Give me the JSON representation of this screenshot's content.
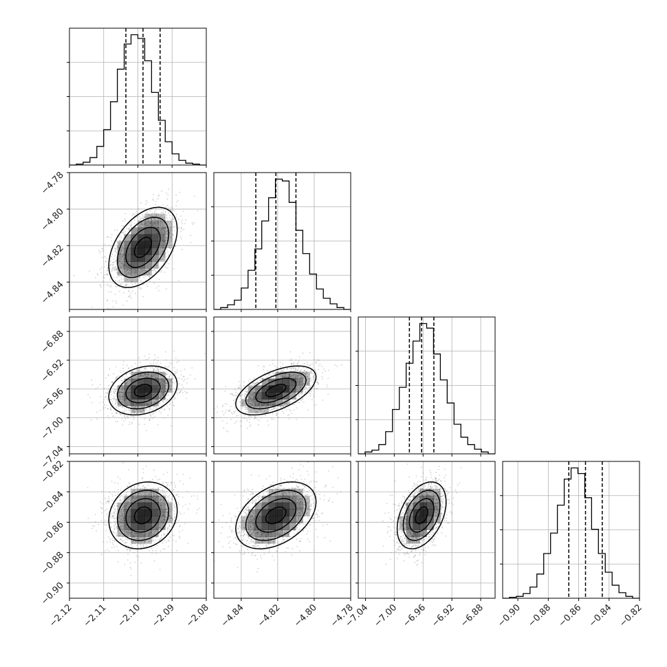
{
  "chart_data": {
    "type": "corner",
    "parameters": [
      {
        "median": -2.0985,
        "q16": -2.1035,
        "q84": -2.0935,
        "sigma": 0.005,
        "hist_counts": [
          0,
          1,
          3,
          8,
          20,
          38,
          68,
          103,
          130,
          140,
          136,
          112,
          78,
          48,
          25,
          12,
          5,
          2,
          1,
          0
        ],
        "axis_range": [
          -2.12,
          -2.08
        ],
        "ticks": [
          -2.12,
          -2.11,
          -2.1,
          -2.09,
          -2.08
        ],
        "tick_labels": [
          "−2.12",
          "−2.11",
          "−2.10",
          "−2.09",
          "−2.08"
        ]
      },
      {
        "median": -4.821,
        "q16": -4.832,
        "q84": -4.81,
        "sigma": 0.011,
        "hist_counts": [
          0,
          2,
          5,
          10,
          23,
          42,
          65,
          95,
          120,
          140,
          138,
          115,
          85,
          60,
          38,
          22,
          12,
          6,
          2,
          0
        ],
        "axis_range": [
          -4.855,
          -4.78
        ],
        "ticks": [
          -4.84,
          -4.82,
          -4.8,
          -4.78
        ],
        "tick_labels": [
          "−4.84",
          "−4.82",
          "−4.80",
          "−4.78"
        ],
        "y_ticks": [
          -4.84,
          -4.82,
          -4.8,
          -4.78
        ],
        "y_tick_labels": [
          "−4.84",
          "−4.82",
          "−4.80",
          "−4.78"
        ]
      },
      {
        "median": -6.962,
        "q16": -6.979,
        "q84": -6.945,
        "sigma": 0.017,
        "hist_counts": [
          0,
          2,
          4,
          10,
          24,
          48,
          72,
          98,
          122,
          141,
          136,
          108,
          80,
          55,
          32,
          18,
          10,
          5,
          2,
          0
        ],
        "axis_range": [
          -7.05,
          -6.86
        ],
        "ticks": [
          -7.04,
          -7.0,
          -6.96,
          -6.92,
          -6.88
        ],
        "tick_labels": [
          "−7.04",
          "−7.00",
          "−6.96",
          "−6.92",
          "−6.88"
        ],
        "y_ticks": [
          -7.04,
          -7.0,
          -6.96,
          -6.92,
          -6.88
        ],
        "y_tick_labels": [
          "−7.04",
          "−7.00",
          "−6.96",
          "−6.92",
          "−6.88"
        ]
      },
      {
        "median": -0.8555,
        "q16": -0.8665,
        "q84": -0.8445,
        "sigma": 0.011,
        "hist_counts": [
          0,
          1,
          2,
          5,
          12,
          26,
          48,
          70,
          100,
          128,
          140,
          134,
          108,
          74,
          48,
          28,
          14,
          6,
          2,
          0
        ],
        "axis_range": [
          -0.91,
          -0.82
        ],
        "ticks": [
          -0.9,
          -0.88,
          -0.86,
          -0.84,
          -0.82
        ],
        "tick_labels": [
          "−0.90",
          "−0.88",
          "−0.86",
          "−0.84",
          "−0.82"
        ],
        "y_ticks": [
          -0.9,
          -0.88,
          -0.86,
          -0.84,
          -0.82
        ],
        "y_tick_labels": [
          "−0.90",
          "−0.88",
          "−0.86",
          "−0.84",
          "−0.82"
        ]
      }
    ],
    "correlations": {
      "1-0": 0.45,
      "2-0": 0.25,
      "2-1": 0.55,
      "3-0": 0.15,
      "3-1": 0.4,
      "3-2": 0.4
    },
    "quantiles": [
      0.16,
      0.5,
      0.84
    ],
    "contour_levels_sigma": [
      0.5,
      1.0,
      1.5,
      2.0
    ],
    "samples_shown": true,
    "grid": true,
    "colors": {
      "axes": "#000000",
      "grid": "#b0b0b0",
      "samples": "#9a9a9a",
      "density": "#000000",
      "contour": "#000000"
    }
  }
}
